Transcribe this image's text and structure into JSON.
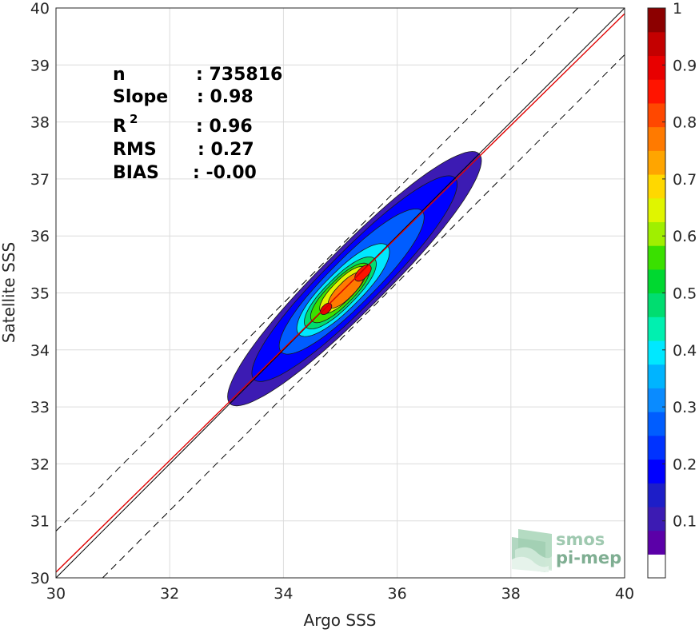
{
  "chart_data": {
    "type": "contour",
    "xlabel": "Argo SSS",
    "ylabel": "Satellite SSS",
    "xlim": [
      30,
      40
    ],
    "ylim": [
      30,
      40
    ],
    "x_ticks": [
      "30",
      "32",
      "34",
      "36",
      "38",
      "40"
    ],
    "y_ticks": [
      "30",
      "31",
      "32",
      "33",
      "34",
      "35",
      "36",
      "37",
      "38",
      "39",
      "40"
    ],
    "grid": true,
    "stats": {
      "n_label": "n",
      "n_value": ": 735816",
      "slope_label": "Slope",
      "slope_value": ": 0.98",
      "r2_label": "R",
      "r2_sup": "2",
      "r2_value": ": 0.96",
      "rms_label": "RMS",
      "rms_value": ": 0.27",
      "bias_label": "BIAS",
      "bias_value": ": -0.00"
    },
    "reference_lines": [
      {
        "name": "1:1",
        "color": "#000000",
        "style": "solid",
        "offset": 0
      },
      {
        "name": "fit",
        "color": "#e00000",
        "style": "solid",
        "slope": 0.98,
        "intercept": 0.7
      },
      {
        "name": "upper",
        "color": "#000000",
        "style": "dashed",
        "offset": 0.82
      },
      {
        "name": "lower",
        "color": "#000000",
        "style": "dashed",
        "offset": -0.82
      }
    ],
    "density_contours": [
      {
        "level": 0.05,
        "center": [
          35.25,
          35.25
        ],
        "half_length": 3.1,
        "half_width": 0.55
      },
      {
        "level": 0.15,
        "center": [
          35.25,
          35.25
        ],
        "half_length": 2.5,
        "half_width": 0.48
      },
      {
        "level": 0.25,
        "center": [
          35.2,
          35.2
        ],
        "half_length": 1.75,
        "half_width": 0.4
      },
      {
        "level": 0.35,
        "center": [
          35.05,
          35.05
        ],
        "half_length": 1.1,
        "half_width": 0.32
      },
      {
        "level": 0.45,
        "center": [
          35.0,
          35.0
        ],
        "half_length": 0.85,
        "half_width": 0.26
      },
      {
        "level": 0.55,
        "center": [
          35.0,
          35.0
        ],
        "half_length": 0.7,
        "half_width": 0.22
      },
      {
        "level": 0.65,
        "center": [
          35.05,
          35.05
        ],
        "half_length": 0.55,
        "half_width": 0.18
      },
      {
        "level": 0.75,
        "center": [
          35.1,
          35.05
        ],
        "half_length": 0.42,
        "half_width": 0.14
      },
      {
        "level": 0.85,
        "center": [
          35.4,
          35.35
        ],
        "half_length": 0.18,
        "half_width": 0.09
      },
      {
        "level": 0.87,
        "center": [
          34.75,
          34.72
        ],
        "half_length": 0.12,
        "half_width": 0.07
      }
    ],
    "colorbar": {
      "ticks": [
        "0.1",
        "0.2",
        "0.3",
        "0.4",
        "0.5",
        "0.6",
        "0.7",
        "0.8",
        "0.9",
        "1"
      ],
      "range": [
        0,
        1
      ],
      "colors": [
        "#ffffff",
        "#5b00a8",
        "#3c1bb3",
        "#1d1ec8",
        "#0000ff",
        "#0033ff",
        "#005dff",
        "#0a8bff",
        "#00b4ff",
        "#00e8ff",
        "#00f0b0",
        "#00dd70",
        "#00d830",
        "#3ae000",
        "#a0ef00",
        "#e0f500",
        "#ffd800",
        "#ffa500",
        "#ff7a00",
        "#ff4800",
        "#ff1400",
        "#e80000",
        "#c40000",
        "#8c0000"
      ]
    }
  },
  "logo": {
    "line1": "smos",
    "line2": "pi-mep"
  }
}
